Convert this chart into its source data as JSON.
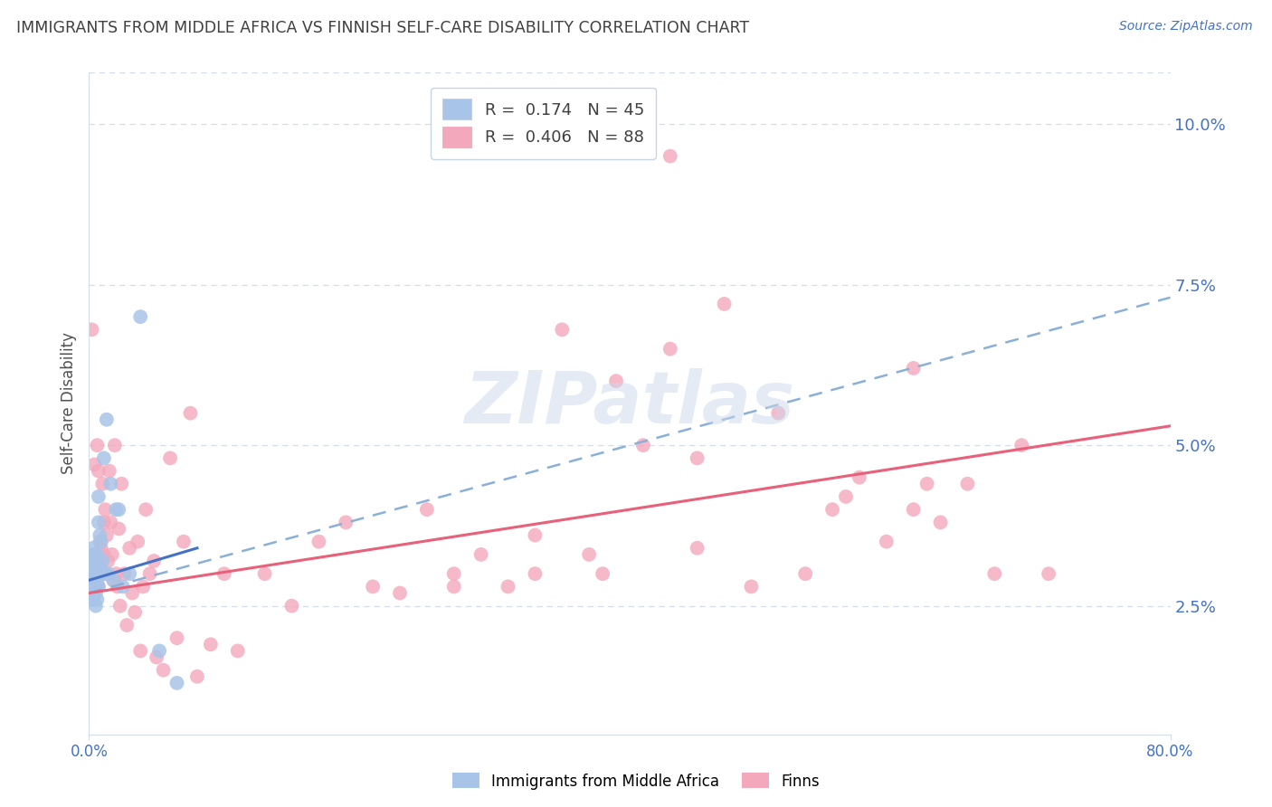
{
  "title": "IMMIGRANTS FROM MIDDLE AFRICA VS FINNISH SELF-CARE DISABILITY CORRELATION CHART",
  "source": "Source: ZipAtlas.com",
  "ylabel": "Self-Care Disability",
  "right_yticks": [
    "2.5%",
    "5.0%",
    "7.5%",
    "10.0%"
  ],
  "right_ytick_vals": [
    0.025,
    0.05,
    0.075,
    0.1
  ],
  "blue_color": "#a8c4e8",
  "pink_color": "#f4a8bc",
  "line_blue_solid_color": "#4472c4",
  "line_blue_dash_color": "#8ab0d8",
  "line_pink_color": "#e8607a",
  "grid_color": "#d4dce8",
  "title_color": "#404040",
  "tick_color": "#4472c4",
  "watermark_color": "#ccd8ec",
  "xlim": [
    0.0,
    0.8
  ],
  "ylim": [
    0.005,
    0.108
  ],
  "blue_solid_line": [
    0.0,
    0.029,
    0.08,
    0.034
  ],
  "blue_dash_line": [
    0.0,
    0.027,
    0.8,
    0.073
  ],
  "pink_solid_line": [
    0.0,
    0.027,
    0.8,
    0.053
  ],
  "blue_x": [
    0.001,
    0.002,
    0.002,
    0.002,
    0.003,
    0.003,
    0.003,
    0.003,
    0.004,
    0.004,
    0.004,
    0.004,
    0.004,
    0.005,
    0.005,
    0.005,
    0.005,
    0.005,
    0.006,
    0.006,
    0.006,
    0.006,
    0.006,
    0.007,
    0.007,
    0.007,
    0.007,
    0.008,
    0.008,
    0.009,
    0.009,
    0.01,
    0.011,
    0.012,
    0.013,
    0.014,
    0.016,
    0.018,
    0.02,
    0.022,
    0.025,
    0.03,
    0.038,
    0.052,
    0.065
  ],
  "blue_y": [
    0.03,
    0.029,
    0.032,
    0.027,
    0.028,
    0.031,
    0.026,
    0.034,
    0.028,
    0.03,
    0.033,
    0.027,
    0.031,
    0.029,
    0.027,
    0.032,
    0.025,
    0.031,
    0.028,
    0.031,
    0.029,
    0.026,
    0.033,
    0.038,
    0.03,
    0.028,
    0.042,
    0.031,
    0.036,
    0.03,
    0.035,
    0.032,
    0.048,
    0.03,
    0.054,
    0.03,
    0.044,
    0.029,
    0.04,
    0.04,
    0.028,
    0.03,
    0.07,
    0.018,
    0.013
  ],
  "pink_x": [
    0.001,
    0.002,
    0.003,
    0.004,
    0.004,
    0.005,
    0.006,
    0.006,
    0.007,
    0.007,
    0.008,
    0.009,
    0.009,
    0.01,
    0.011,
    0.011,
    0.012,
    0.013,
    0.014,
    0.015,
    0.016,
    0.017,
    0.018,
    0.019,
    0.02,
    0.021,
    0.022,
    0.023,
    0.024,
    0.026,
    0.028,
    0.03,
    0.032,
    0.034,
    0.036,
    0.038,
    0.04,
    0.042,
    0.045,
    0.048,
    0.05,
    0.055,
    0.06,
    0.065,
    0.07,
    0.075,
    0.08,
    0.09,
    0.1,
    0.11,
    0.13,
    0.15,
    0.17,
    0.19,
    0.21,
    0.23,
    0.25,
    0.27,
    0.29,
    0.31,
    0.33,
    0.35,
    0.37,
    0.39,
    0.41,
    0.43,
    0.45,
    0.47,
    0.49,
    0.51,
    0.53,
    0.55,
    0.57,
    0.59,
    0.61,
    0.63,
    0.65,
    0.67,
    0.69,
    0.71,
    0.45,
    0.38,
    0.56,
    0.61,
    0.43,
    0.33,
    0.27,
    0.62
  ],
  "pink_y": [
    0.03,
    0.068,
    0.028,
    0.033,
    0.047,
    0.03,
    0.05,
    0.032,
    0.046,
    0.028,
    0.035,
    0.034,
    0.03,
    0.044,
    0.038,
    0.033,
    0.04,
    0.036,
    0.032,
    0.046,
    0.038,
    0.033,
    0.029,
    0.05,
    0.03,
    0.028,
    0.037,
    0.025,
    0.044,
    0.03,
    0.022,
    0.034,
    0.027,
    0.024,
    0.035,
    0.018,
    0.028,
    0.04,
    0.03,
    0.032,
    0.017,
    0.015,
    0.048,
    0.02,
    0.035,
    0.055,
    0.014,
    0.019,
    0.03,
    0.018,
    0.03,
    0.025,
    0.035,
    0.038,
    0.028,
    0.027,
    0.04,
    0.03,
    0.033,
    0.028,
    0.036,
    0.068,
    0.033,
    0.06,
    0.05,
    0.065,
    0.034,
    0.072,
    0.028,
    0.055,
    0.03,
    0.04,
    0.045,
    0.035,
    0.062,
    0.038,
    0.044,
    0.03,
    0.05,
    0.03,
    0.048,
    0.03,
    0.042,
    0.04,
    0.095,
    0.03,
    0.028,
    0.044
  ]
}
